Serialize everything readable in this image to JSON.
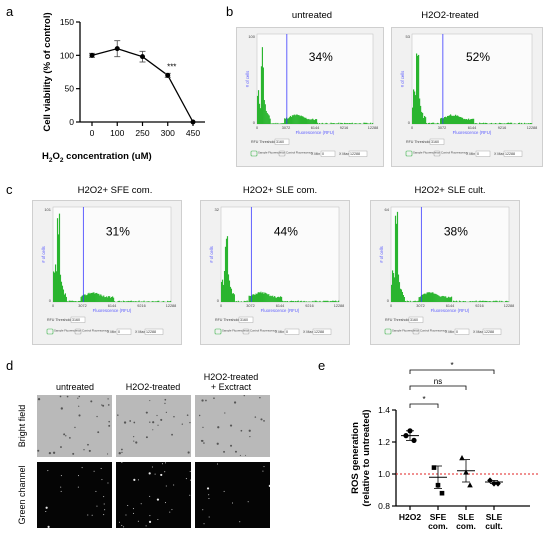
{
  "panels": {
    "a": "a",
    "b": "b",
    "c": "c",
    "d": "d",
    "e": "e"
  },
  "colors": {
    "histogram": "#2ab52f",
    "threshold_line": "#3a3aff",
    "axis_text": "#5a5aff",
    "dashed_ref": "#e02020",
    "panel_bg": "#f1f1f1"
  },
  "chart_data": [
    {
      "type": "line",
      "panel": "a",
      "xlabel": "H2O2 concentration (uM)",
      "xlabel_parts": {
        "pre": "H",
        "sub1": "2",
        "mid": "O",
        "sub2": "2",
        "post": " concentration (uM)"
      },
      "ylabel": "Cell viability (% of control)",
      "categories": [
        "0",
        "100",
        "250",
        "300",
        "450"
      ],
      "values": [
        100,
        110,
        98,
        70,
        0
      ],
      "errors": [
        3,
        12,
        8,
        3,
        0
      ],
      "ylim": [
        0,
        150
      ],
      "yticks": [
        "0",
        "50",
        "100",
        "150"
      ],
      "annotation": "***",
      "annotation_index": 3
    },
    {
      "type": "bar",
      "panel": "b",
      "subtitle": "Flow cytometry histograms",
      "panels": [
        {
          "title": "untreated",
          "percent": "34%"
        },
        {
          "title": "H2O2-treated",
          "percent": "52%"
        }
      ],
      "ylabel": "# of cells",
      "xlabel": "Fluorescence (RFU)",
      "xticks": [
        "0",
        "3072",
        "6144",
        "9216",
        "12288"
      ],
      "ymax_tick_b": [
        "100",
        "53"
      ],
      "rfu_label": "RFU Threshold",
      "rfu_value": "3160",
      "sample_label": "Sample Fluorescence",
      "control_label": "Control Fluorescence",
      "xmin_label": "X Min",
      "xmin_value": "0",
      "xmax_label": "X Max",
      "xmax_value": "12288"
    },
    {
      "type": "bar",
      "panel": "c",
      "panels": [
        {
          "title": "H2O2+ SFE com.",
          "percent": "31%",
          "ytop": "101"
        },
        {
          "title": "H2O2+ SLE com.",
          "percent": "44%",
          "ytop": "32"
        },
        {
          "title": "H2O2+ SLE cult.",
          "percent": "38%",
          "ytop": "64"
        }
      ]
    },
    {
      "type": "scatter",
      "panel": "e",
      "ylabel": "ROS generation (relative to untreated)",
      "ylabel_line1": "ROS generation",
      "ylabel_line2": "(relative to untreated)",
      "categories": [
        "H2O2",
        "SFE com.",
        "SLE com.",
        "SLE cult."
      ],
      "category_lines": [
        [
          "H2O2"
        ],
        [
          "SFE",
          "com."
        ],
        [
          "SLE",
          "com."
        ],
        [
          "SLE",
          "cult."
        ]
      ],
      "markers": [
        "circle",
        "square",
        "triangle",
        "diamond"
      ],
      "points": [
        [
          1.24,
          1.27,
          1.21
        ],
        [
          1.04,
          0.93,
          0.88
        ],
        [
          1.1,
          1.01,
          0.93
        ],
        [
          0.96,
          0.94,
          0.94
        ]
      ],
      "means": [
        1.24,
        0.98,
        1.02,
        0.95
      ],
      "sem": [
        0.03,
        0.07,
        0.07,
        0.01
      ],
      "ylim": [
        0.8,
        1.4
      ],
      "yticks": [
        "0.8",
        "1.0",
        "1.2",
        "1.4"
      ],
      "reference_line": 1.0,
      "significance": [
        {
          "from": 0,
          "to": 1,
          "label": "*"
        },
        {
          "from": 0,
          "to": 2,
          "label": "ns"
        },
        {
          "from": 0,
          "to": 3,
          "label": "*"
        }
      ]
    }
  ],
  "microscopy": {
    "columns": [
      "untreated",
      "H2O2-treated",
      "H2O2-treated\n+ Exctract"
    ],
    "column_line1": [
      "untreated",
      "H2O2-treated",
      "H2O2-treated"
    ],
    "column_line2": [
      "",
      "",
      "+ Exctract"
    ],
    "rows": [
      "Bright field",
      "Green channel"
    ]
  }
}
